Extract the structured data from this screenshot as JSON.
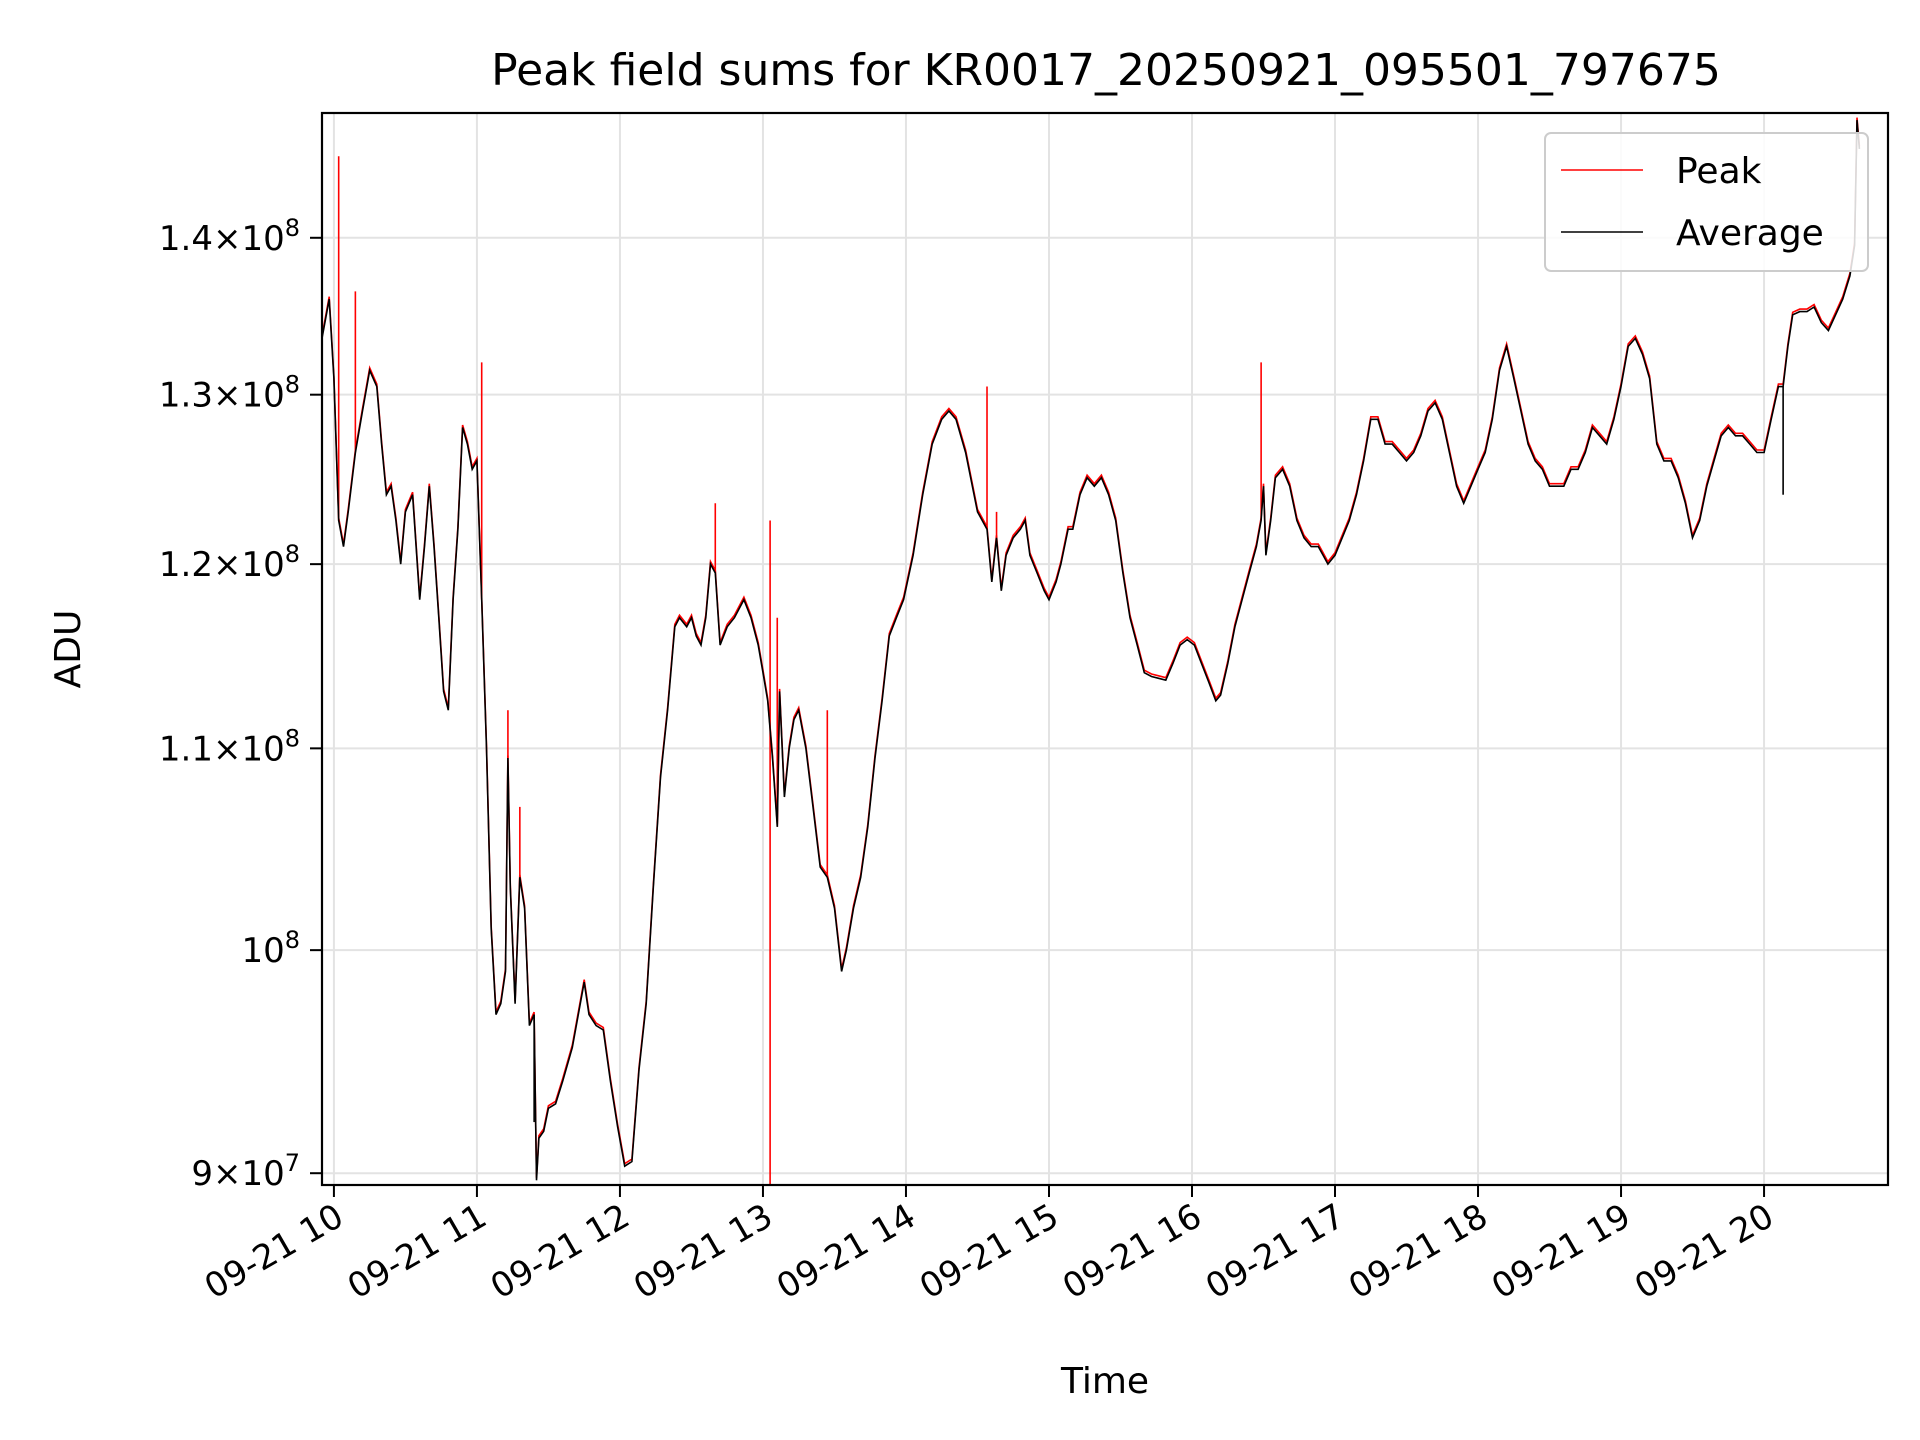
{
  "chart_data": {
    "type": "line",
    "title": "Peak field sums for KR0017_20250921_095501_797675",
    "xlabel": "Time",
    "ylabel": "ADU",
    "x_range": [
      "2025-09-21 09:55",
      "2025-09-21 20:52"
    ],
    "y_scale": "log",
    "ylim": [
      89500000,
      148500000
    ],
    "grid": true,
    "legend_position": "top-right",
    "x_ticks": [
      "09-21 10",
      "09-21 11",
      "09-21 12",
      "09-21 13",
      "09-21 14",
      "09-21 15",
      "09-21 16",
      "09-21 17",
      "09-21 18",
      "09-21 19",
      "09-21 20"
    ],
    "y_ticks": [
      {
        "value": 90000000,
        "mantissa": "9",
        "exponent": "7"
      },
      {
        "value": 100000000,
        "mantissa": "",
        "exponent": "8"
      },
      {
        "value": 110000000,
        "mantissa": "1.1",
        "exponent": "8"
      },
      {
        "value": 120000000,
        "mantissa": "1.2",
        "exponent": "8"
      },
      {
        "value": 130000000,
        "mantissa": "1.3",
        "exponent": "8"
      },
      {
        "value": 140000000,
        "mantissa": "1.4",
        "exponent": "8"
      }
    ],
    "series": [
      {
        "name": "Peak",
        "color": "#ff0000"
      },
      {
        "name": "Average",
        "color": "#000000"
      }
    ],
    "average_points": [
      [
        "09:55",
        133.5
      ],
      [
        "09:58",
        136.0
      ],
      [
        "10:00",
        131.0
      ],
      [
        "10:02",
        122.5
      ],
      [
        "10:04",
        121.0
      ],
      [
        "10:06",
        123.0
      ],
      [
        "10:09",
        126.5
      ],
      [
        "10:12",
        129.0
      ],
      [
        "10:15",
        131.5
      ],
      [
        "10:18",
        130.5
      ],
      [
        "10:20",
        127.0
      ],
      [
        "10:22",
        124.0
      ],
      [
        "10:24",
        124.5
      ],
      [
        "10:26",
        122.5
      ],
      [
        "10:28",
        120.0
      ],
      [
        "10:30",
        123.0
      ],
      [
        "10:33",
        124.0
      ],
      [
        "10:36",
        118.0
      ],
      [
        "10:38",
        121.0
      ],
      [
        "10:40",
        124.5
      ],
      [
        "10:42",
        121.0
      ],
      [
        "10:44",
        117.0
      ],
      [
        "10:46",
        113.0
      ],
      [
        "10:48",
        112.0
      ],
      [
        "10:50",
        118.0
      ],
      [
        "10:52",
        122.0
      ],
      [
        "10:54",
        128.0
      ],
      [
        "10:56",
        127.0
      ],
      [
        "10:58",
        125.5
      ],
      [
        "11:00",
        126.0
      ],
      [
        "11:02",
        118.0
      ],
      [
        "11:04",
        110.0
      ],
      [
        "11:06",
        101.0
      ],
      [
        "11:08",
        97.0
      ],
      [
        "11:10",
        97.5
      ],
      [
        "11:12",
        99.0
      ],
      [
        "11:13",
        109.5
      ],
      [
        "11:14",
        103.0
      ],
      [
        "11:16",
        97.5
      ],
      [
        "11:18",
        103.5
      ],
      [
        "11:20",
        102.0
      ],
      [
        "11:22",
        96.5
      ],
      [
        "11:24",
        97.0
      ],
      [
        "11:25",
        89.7
      ],
      [
        "11:26",
        91.5
      ],
      [
        "11:28",
        91.8
      ],
      [
        "11:30",
        92.8
      ],
      [
        "11:33",
        93.0
      ],
      [
        "11:36",
        94.0
      ],
      [
        "11:40",
        95.5
      ],
      [
        "11:45",
        98.5
      ],
      [
        "11:47",
        97.0
      ],
      [
        "11:50",
        96.5
      ],
      [
        "11:53",
        96.3
      ],
      [
        "11:56",
        94.0
      ],
      [
        "11:59",
        92.0
      ],
      [
        "12:02",
        90.3
      ],
      [
        "12:05",
        90.5
      ],
      [
        "12:08",
        94.5
      ],
      [
        "12:11",
        97.5
      ],
      [
        "12:14",
        103.0
      ],
      [
        "12:17",
        108.5
      ],
      [
        "12:20",
        112.0
      ],
      [
        "12:23",
        116.5
      ],
      [
        "12:25",
        117.0
      ],
      [
        "12:28",
        116.5
      ],
      [
        "12:30",
        117.0
      ],
      [
        "12:32",
        116.0
      ],
      [
        "12:34",
        115.5
      ],
      [
        "12:36",
        117.0
      ],
      [
        "12:38",
        120.0
      ],
      [
        "12:40",
        119.5
      ],
      [
        "12:42",
        115.5
      ],
      [
        "12:45",
        116.5
      ],
      [
        "12:48",
        117.0
      ],
      [
        "12:52",
        118.0
      ],
      [
        "12:55",
        117.0
      ],
      [
        "12:58",
        115.5
      ],
      [
        "13:00",
        114.0
      ],
      [
        "13:02",
        112.5
      ],
      [
        "13:04",
        109.5
      ],
      [
        "13:06",
        106.0
      ],
      [
        "13:07",
        113.0
      ],
      [
        "13:09",
        107.5
      ],
      [
        "13:11",
        110.0
      ],
      [
        "13:13",
        111.5
      ],
      [
        "13:15",
        112.0
      ],
      [
        "13:18",
        110.0
      ],
      [
        "13:21",
        107.0
      ],
      [
        "13:24",
        104.0
      ],
      [
        "13:27",
        103.5
      ],
      [
        "13:30",
        102.0
      ],
      [
        "13:33",
        99.0
      ],
      [
        "13:35",
        100.0
      ],
      [
        "13:38",
        102.0
      ],
      [
        "13:41",
        103.5
      ],
      [
        "13:44",
        106.0
      ],
      [
        "13:47",
        109.5
      ],
      [
        "13:50",
        112.5
      ],
      [
        "13:53",
        116.0
      ],
      [
        "13:56",
        117.0
      ],
      [
        "13:59",
        118.0
      ],
      [
        "14:03",
        120.5
      ],
      [
        "14:07",
        124.0
      ],
      [
        "14:11",
        127.0
      ],
      [
        "14:15",
        128.5
      ],
      [
        "14:18",
        129.0
      ],
      [
        "14:21",
        128.5
      ],
      [
        "14:25",
        126.5
      ],
      [
        "14:30",
        123.0
      ],
      [
        "14:34",
        122.0
      ],
      [
        "14:36",
        119.0
      ],
      [
        "14:38",
        121.5
      ],
      [
        "14:40",
        118.5
      ],
      [
        "14:42",
        120.5
      ],
      [
        "14:45",
        121.5
      ],
      [
        "14:48",
        122.0
      ],
      [
        "14:50",
        122.5
      ],
      [
        "14:52",
        120.5
      ],
      [
        "14:55",
        119.5
      ],
      [
        "14:58",
        118.5
      ],
      [
        "15:00",
        118.0
      ],
      [
        "15:03",
        119.0
      ],
      [
        "15:05",
        120.0
      ],
      [
        "15:08",
        122.0
      ],
      [
        "15:10",
        122.0
      ],
      [
        "15:13",
        124.0
      ],
      [
        "15:16",
        125.0
      ],
      [
        "15:19",
        124.5
      ],
      [
        "15:22",
        125.0
      ],
      [
        "15:25",
        124.0
      ],
      [
        "15:28",
        122.5
      ],
      [
        "15:31",
        119.5
      ],
      [
        "15:34",
        117.0
      ],
      [
        "15:37",
        115.5
      ],
      [
        "15:40",
        114.0
      ],
      [
        "15:43",
        113.8
      ],
      [
        "15:46",
        113.7
      ],
      [
        "15:49",
        113.6
      ],
      [
        "15:52",
        114.5
      ],
      [
        "15:55",
        115.5
      ],
      [
        "15:58",
        115.8
      ],
      [
        "16:01",
        115.5
      ],
      [
        "16:04",
        114.5
      ],
      [
        "16:07",
        113.5
      ],
      [
        "16:10",
        112.5
      ],
      [
        "16:12",
        112.8
      ],
      [
        "16:15",
        114.5
      ],
      [
        "16:18",
        116.5
      ],
      [
        "16:21",
        118.0
      ],
      [
        "16:24",
        119.5
      ],
      [
        "16:27",
        121.0
      ],
      [
        "16:29",
        122.5
      ],
      [
        "16:30",
        124.5
      ],
      [
        "16:31",
        120.5
      ],
      [
        "16:33",
        122.5
      ],
      [
        "16:35",
        125.0
      ],
      [
        "16:38",
        125.5
      ],
      [
        "16:41",
        124.5
      ],
      [
        "16:44",
        122.5
      ],
      [
        "16:47",
        121.5
      ],
      [
        "16:50",
        121.0
      ],
      [
        "16:53",
        121.0
      ],
      [
        "16:55",
        120.5
      ],
      [
        "16:57",
        120.0
      ],
      [
        "17:00",
        120.5
      ],
      [
        "17:03",
        121.5
      ],
      [
        "17:06",
        122.5
      ],
      [
        "17:09",
        124.0
      ],
      [
        "17:12",
        126.0
      ],
      [
        "17:15",
        128.5
      ],
      [
        "17:18",
        128.5
      ],
      [
        "17:21",
        127.0
      ],
      [
        "17:24",
        127.0
      ],
      [
        "17:27",
        126.5
      ],
      [
        "17:30",
        126.0
      ],
      [
        "17:33",
        126.5
      ],
      [
        "17:36",
        127.5
      ],
      [
        "17:39",
        129.0
      ],
      [
        "17:42",
        129.5
      ],
      [
        "17:45",
        128.5
      ],
      [
        "17:48",
        126.5
      ],
      [
        "17:51",
        124.5
      ],
      [
        "17:54",
        123.5
      ],
      [
        "17:57",
        124.5
      ],
      [
        "18:00",
        125.5
      ],
      [
        "18:03",
        126.5
      ],
      [
        "18:06",
        128.5
      ],
      [
        "18:09",
        131.5
      ],
      [
        "18:12",
        133.0
      ],
      [
        "18:15",
        131.0
      ],
      [
        "18:18",
        129.0
      ],
      [
        "18:21",
        127.0
      ],
      [
        "18:24",
        126.0
      ],
      [
        "18:27",
        125.5
      ],
      [
        "18:30",
        124.5
      ],
      [
        "18:33",
        124.5
      ],
      [
        "18:36",
        124.5
      ],
      [
        "18:39",
        125.5
      ],
      [
        "18:42",
        125.5
      ],
      [
        "18:45",
        126.5
      ],
      [
        "18:48",
        128.0
      ],
      [
        "18:51",
        127.5
      ],
      [
        "18:54",
        127.0
      ],
      [
        "18:57",
        128.5
      ],
      [
        "19:00",
        130.5
      ],
      [
        "19:03",
        133.0
      ],
      [
        "19:06",
        133.5
      ],
      [
        "19:09",
        132.5
      ],
      [
        "19:12",
        131.0
      ],
      [
        "19:15",
        127.0
      ],
      [
        "19:18",
        126.0
      ],
      [
        "19:21",
        126.0
      ],
      [
        "19:24",
        125.0
      ],
      [
        "19:27",
        123.5
      ],
      [
        "19:30",
        121.5
      ],
      [
        "19:33",
        122.5
      ],
      [
        "19:36",
        124.5
      ],
      [
        "19:39",
        126.0
      ],
      [
        "19:42",
        127.5
      ],
      [
        "19:45",
        128.0
      ],
      [
        "19:48",
        127.5
      ],
      [
        "19:51",
        127.5
      ],
      [
        "19:54",
        127.0
      ],
      [
        "19:57",
        126.5
      ],
      [
        "20:00",
        126.5
      ],
      [
        "20:03",
        128.5
      ],
      [
        "20:06",
        130.5
      ],
      [
        "20:08",
        130.5
      ],
      [
        "20:10",
        133.0
      ],
      [
        "20:12",
        135.0
      ],
      [
        "20:15",
        135.2
      ],
      [
        "20:18",
        135.2
      ],
      [
        "20:21",
        135.5
      ],
      [
        "20:24",
        134.5
      ],
      [
        "20:27",
        134.0
      ],
      [
        "20:30",
        135.0
      ],
      [
        "20:33",
        136.0
      ],
      [
        "20:36",
        137.5
      ],
      [
        "20:38",
        139.5
      ],
      [
        "20:39",
        148.0
      ],
      [
        "20:40",
        146.0
      ]
    ],
    "average_spikes": [
      {
        "time": "11:24",
        "low": 92.2
      },
      {
        "time": "20:08",
        "low": 124.0
      }
    ],
    "peak_spikes": [
      {
        "time": "10:02",
        "high": 145.5
      },
      {
        "time": "10:09",
        "high": 136.5
      },
      {
        "time": "11:02",
        "high": 132.0
      },
      {
        "time": "11:13",
        "high": 112.0
      },
      {
        "time": "11:18",
        "high": 107.0
      },
      {
        "time": "12:40",
        "high": 123.5
      },
      {
        "time": "13:03",
        "high": 122.5
      },
      {
        "time": "13:06",
        "high": 117.0
      },
      {
        "time": "13:27",
        "high": 112.0
      },
      {
        "time": "14:34",
        "high": 130.5
      },
      {
        "time": "14:38",
        "high": 123.0
      },
      {
        "time": "16:29",
        "high": 132.0
      }
    ]
  }
}
